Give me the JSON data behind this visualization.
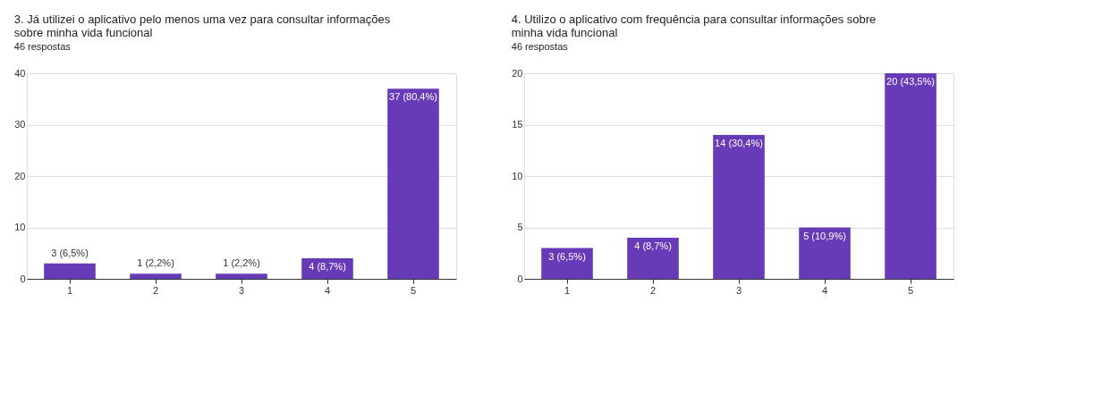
{
  "chart_data": [
    {
      "type": "bar",
      "title": "3. Já utilizei o aplicativo pelo menos uma vez para consultar informações sobre minha vida funcional",
      "subtitle": "46 respostas",
      "categories": [
        "1",
        "2",
        "3",
        "4",
        "5"
      ],
      "values": [
        3,
        1,
        1,
        4,
        37
      ],
      "value_labels": [
        "3 (6,5%)",
        "1 (2,2%)",
        "1 (2,2%)",
        "4 (8,7%)",
        "37 (80,4%)"
      ],
      "color": "#673ab7",
      "ylim": [
        0,
        40
      ],
      "yticks": [
        0,
        10,
        20,
        30,
        40
      ],
      "grid": "y"
    },
    {
      "type": "bar",
      "title": "4. Utilizo o aplicativo com frequência para consultar informações sobre minha vida funcional",
      "subtitle": "46 respostas",
      "categories": [
        "1",
        "2",
        "3",
        "4",
        "5"
      ],
      "values": [
        3,
        4,
        14,
        5,
        20
      ],
      "value_labels": [
        "3 (6,5%)",
        "4 (8,7%)",
        "14 (30,4%)",
        "5 (10,9%)",
        "20 (43,5%)"
      ],
      "color": "#673ab7",
      "ylim": [
        0,
        20
      ],
      "yticks": [
        0,
        5,
        10,
        15,
        20
      ],
      "grid": "y"
    }
  ]
}
